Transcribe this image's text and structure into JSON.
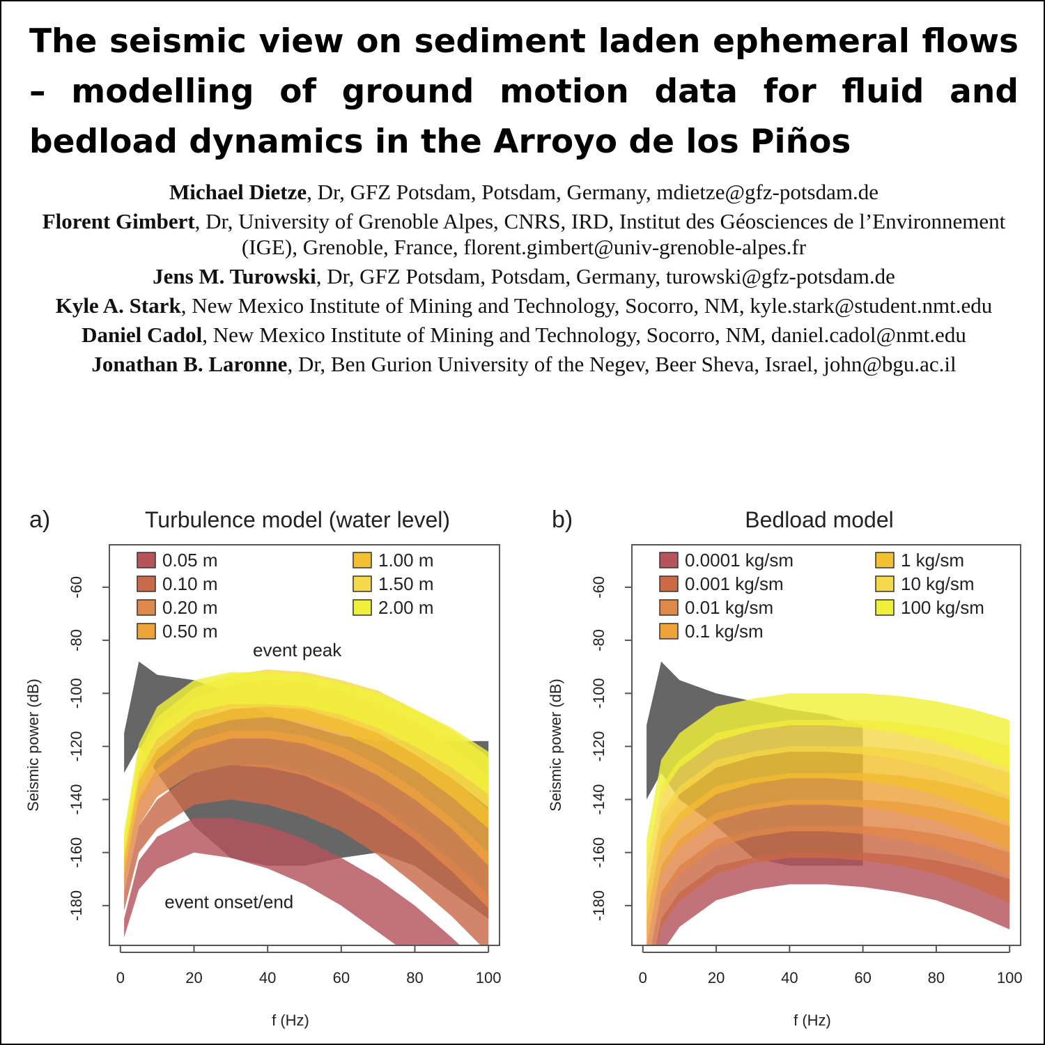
{
  "header": {
    "title": "The seismic view on sediment laden ephemeral flows – modelling of ground motion data for fluid and bedload dynamics in the Arroyo de los Piños"
  },
  "authors": [
    {
      "name": "Michael Dietze",
      "details": ", Dr, GFZ Potsdam, Potsdam, Germany, mdietze@gfz-potsdam.de"
    },
    {
      "name": "Florent Gimbert",
      "details": ", Dr, University of Grenoble Alpes, CNRS, IRD, Institut des Géosciences de l’Environnement (IGE), Grenoble, France, florent.gimbert@univ-grenoble-alpes.fr"
    },
    {
      "name": "Jens M. Turowski",
      "details": ", Dr, GFZ Potsdam, Potsdam, Germany, turowski@gfz-potsdam.de"
    },
    {
      "name": "Kyle A. Stark",
      "details": ", New Mexico Institute of Mining and Technology, Socorro, NM, kyle.stark@student.nmt.edu"
    },
    {
      "name": "Daniel Cadol",
      "details": ", New Mexico Institute of Mining and Technology, Socorro, NM, daniel.cadol@nmt.edu"
    },
    {
      "name": "Jonathan B. Laronne",
      "details": ", Dr, Ben Gurion University of the Negev, Beer Sheva, Israel, john@bgu.ac.il"
    }
  ],
  "chart_data": [
    {
      "type": "band",
      "panel_label": "a)",
      "title": "Turbulence model (water level)",
      "x_label": "f (Hz)",
      "y_label": "Seismic power (dB)",
      "xlim": [
        -3,
        103
      ],
      "ylim": [
        -195,
        -44
      ],
      "xticks": [
        0,
        20,
        40,
        60,
        80,
        100
      ],
      "yticks": [
        -60,
        -80,
        -100,
        -120,
        -140,
        -160,
        -180
      ],
      "x": [
        1,
        5,
        10,
        20,
        30,
        40,
        50,
        60,
        70,
        80,
        90,
        100
      ],
      "series": [
        {
          "color": "#444444",
          "upper": [
            -115,
            -88,
            -93,
            -95,
            -100,
            -108,
            -112,
            -116,
            -118,
            -118,
            -118,
            -118
          ],
          "lower": [
            -130,
            -120,
            -130,
            -150,
            -162,
            -165,
            -165,
            -162,
            -160,
            -165,
            -175,
            -185
          ]
        },
        {
          "name": "0.05 m",
          "color": "#b5545b",
          "upper": [
            -185,
            -163,
            -154,
            -147,
            -147,
            -150,
            -155,
            -162,
            -170,
            -180,
            -192,
            -205
          ],
          "lower": [
            -192,
            -174,
            -166,
            -160,
            -162,
            -166,
            -172,
            -180,
            -190,
            -200,
            -212,
            -225
          ]
        },
        {
          "name": "0.10 m",
          "color": "#c96a4a",
          "upper": [
            -175,
            -150,
            -140,
            -130,
            -127,
            -127,
            -130,
            -135,
            -142,
            -152,
            -163,
            -176
          ],
          "lower": [
            -182,
            -160,
            -151,
            -142,
            -140,
            -142,
            -146,
            -152,
            -161,
            -172,
            -184,
            -198
          ]
        },
        {
          "name": "0.20 m",
          "color": "#e0874a",
          "upper": [
            -168,
            -140,
            -128,
            -118,
            -114,
            -114,
            -116,
            -120,
            -127,
            -136,
            -147,
            -160
          ],
          "lower": [
            -175,
            -150,
            -139,
            -130,
            -127,
            -128,
            -131,
            -137,
            -145,
            -155,
            -167,
            -181
          ]
        },
        {
          "name": "0.50 m",
          "color": "#eea33a",
          "upper": [
            -162,
            -132,
            -120,
            -109,
            -104,
            -103,
            -104,
            -108,
            -114,
            -122,
            -132,
            -144
          ],
          "lower": [
            -170,
            -142,
            -131,
            -121,
            -117,
            -117,
            -119,
            -124,
            -131,
            -140,
            -151,
            -165
          ]
        },
        {
          "name": "1.00 m",
          "color": "#f2c030",
          "upper": [
            -158,
            -126,
            -113,
            -102,
            -97,
            -95,
            -96,
            -99,
            -104,
            -111,
            -120,
            -131
          ],
          "lower": [
            -166,
            -137,
            -125,
            -114,
            -110,
            -109,
            -111,
            -115,
            -121,
            -129,
            -139,
            -151
          ]
        },
        {
          "name": "1.50 m",
          "color": "#f5d94a",
          "upper": [
            -155,
            -122,
            -109,
            -98,
            -93,
            -91,
            -92,
            -95,
            -99,
            -106,
            -114,
            -124
          ],
          "lower": [
            -163,
            -133,
            -121,
            -110,
            -106,
            -105,
            -106,
            -110,
            -115,
            -123,
            -132,
            -143
          ]
        },
        {
          "name": "2.00 m",
          "color": "#f0f03a",
          "upper": [
            -152,
            -119,
            -105,
            -95,
            -92,
            -92,
            -93,
            -96,
            -100,
            -106,
            -113,
            -122
          ],
          "lower": [
            -160,
            -130,
            -117,
            -107,
            -104,
            -104,
            -105,
            -108,
            -113,
            -120,
            -128,
            -138
          ]
        }
      ],
      "annotations": [
        {
          "text": "event peak",
          "x": 36,
          "y": -86
        },
        {
          "text": "event onset/end",
          "x": 12,
          "y": -181
        }
      ]
    },
    {
      "type": "band",
      "panel_label": "b)",
      "title": "Bedload model",
      "x_label": "f (Hz)",
      "y_label": "Seismic power (dB)",
      "xlim": [
        -3,
        103
      ],
      "ylim": [
        -195,
        -44
      ],
      "xticks": [
        0,
        20,
        40,
        60,
        80,
        100
      ],
      "yticks": [
        -60,
        -80,
        -100,
        -120,
        -140,
        -160,
        -180
      ],
      "x": [
        1,
        5,
        10,
        20,
        30,
        40,
        50,
        60,
        70,
        80,
        90,
        100
      ],
      "series": [
        {
          "color": "#444444",
          "upper": [
            -112,
            -88,
            -95,
            -100,
            -103,
            -106,
            -108,
            -112,
            null,
            null,
            null,
            null
          ],
          "lower": [
            -140,
            -130,
            -140,
            -150,
            -162,
            -165,
            -165,
            -165,
            null,
            null,
            null,
            null
          ]
        },
        {
          "name": "0.0001 kg/sm",
          "color": "#b5545b",
          "upper": [
            -215,
            -185,
            -175,
            -165,
            -162,
            -160,
            -160,
            -160,
            -161,
            -163,
            -166,
            -170
          ],
          "lower": [
            -225,
            -198,
            -188,
            -178,
            -174,
            -172,
            -172,
            -173,
            -175,
            -178,
            -183,
            -189
          ]
        },
        {
          "name": "0.001 kg/sm",
          "color": "#cc6a45",
          "upper": [
            -205,
            -175,
            -165,
            -155,
            -152,
            -150,
            -150,
            -150,
            -151,
            -153,
            -156,
            -160
          ],
          "lower": [
            -215,
            -188,
            -178,
            -168,
            -164,
            -162,
            -162,
            -163,
            -165,
            -168,
            -173,
            -179
          ]
        },
        {
          "name": "0.01 kg/sm",
          "color": "#e0874a",
          "upper": [
            -195,
            -165,
            -155,
            -145,
            -142,
            -140,
            -140,
            -140,
            -141,
            -143,
            -146,
            -150
          ],
          "lower": [
            -205,
            -178,
            -168,
            -158,
            -154,
            -152,
            -152,
            -153,
            -155,
            -158,
            -163,
            -169
          ]
        },
        {
          "name": "0.1 kg/sm",
          "color": "#eea33a",
          "upper": [
            -185,
            -155,
            -145,
            -135,
            -132,
            -130,
            -130,
            -130,
            -131,
            -133,
            -136,
            -140
          ],
          "lower": [
            -195,
            -168,
            -158,
            -148,
            -144,
            -142,
            -142,
            -143,
            -145,
            -148,
            -153,
            -159
          ]
        },
        {
          "name": "1 kg/sm",
          "color": "#f2c030",
          "upper": [
            -175,
            -145,
            -135,
            -125,
            -122,
            -120,
            -120,
            -120,
            -121,
            -123,
            -126,
            -130
          ],
          "lower": [
            -185,
            -158,
            -148,
            -138,
            -134,
            -132,
            -132,
            -133,
            -135,
            -138,
            -143,
            -149
          ]
        },
        {
          "name": "10 kg/sm",
          "color": "#f5d94a",
          "upper": [
            -165,
            -135,
            -125,
            -115,
            -112,
            -110,
            -110,
            -110,
            -111,
            -113,
            -116,
            -120
          ],
          "lower": [
            -175,
            -148,
            -138,
            -128,
            -124,
            -122,
            -122,
            -123,
            -125,
            -128,
            -133,
            -139
          ]
        },
        {
          "name": "100 kg/sm",
          "color": "#f0f03a",
          "upper": [
            -155,
            -125,
            -115,
            -105,
            -102,
            -100,
            -100,
            -100,
            -101,
            -103,
            -106,
            -110
          ],
          "lower": [
            -165,
            -138,
            -128,
            -118,
            -114,
            -112,
            -112,
            -113,
            -115,
            -118,
            -123,
            -129
          ]
        }
      ]
    }
  ]
}
